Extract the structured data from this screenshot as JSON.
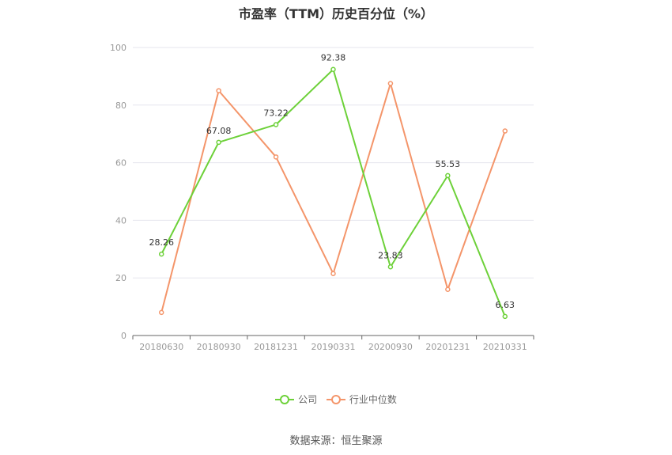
{
  "chart_data": {
    "type": "line",
    "title": "市盈率（TTM）历史百分位（%）",
    "categories": [
      "20180630",
      "20180930",
      "20181231",
      "20190331",
      "20200930",
      "20201231",
      "20210331"
    ],
    "ylim": [
      0,
      100
    ],
    "yticks": [
      0,
      20,
      40,
      60,
      80,
      100
    ],
    "grid": true,
    "legend_position": "bottom",
    "series": [
      {
        "name": "公司",
        "color": "#6dd139",
        "values": [
          28.26,
          67.08,
          73.22,
          92.38,
          23.83,
          55.53,
          6.63
        ],
        "labels": [
          "28.26",
          "67.08",
          "73.22",
          "92.38",
          "23.83",
          "55.53",
          "6.63"
        ]
      },
      {
        "name": "行业中位数",
        "color": "#f4956a",
        "values": [
          8.0,
          85.0,
          62.0,
          21.5,
          87.5,
          16.0,
          71.0
        ]
      }
    ]
  },
  "source": "数据来源：恒生聚源"
}
